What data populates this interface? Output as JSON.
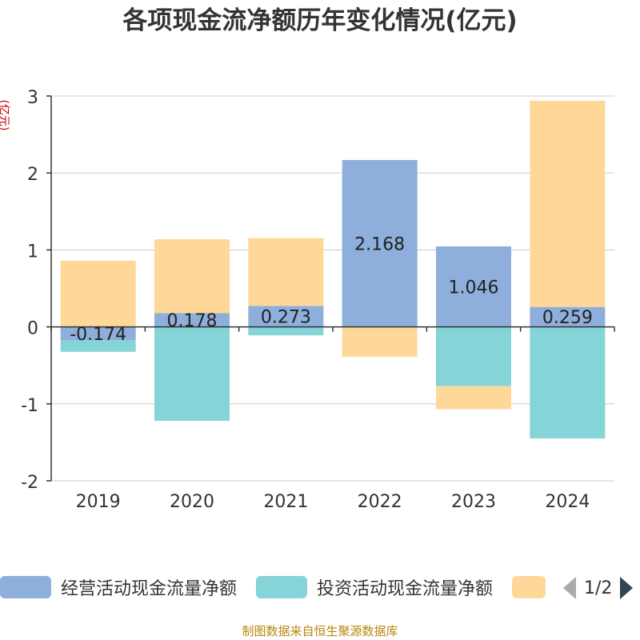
{
  "chart_data": {
    "type": "bar",
    "stacked": true,
    "title": "各项现金流净额历年变化情况(亿元)",
    "ylabel": "(亿元)",
    "categories": [
      "2019",
      "2020",
      "2021",
      "2022",
      "2023",
      "2024"
    ],
    "ylim": [
      -2,
      3
    ],
    "yticks": [
      -2,
      -1,
      0,
      1,
      2,
      3
    ],
    "series": [
      {
        "name": "经营活动现金流量净额",
        "color": "#8eaedb",
        "values": [
          -0.174,
          0.178,
          0.273,
          2.168,
          1.046,
          0.259
        ],
        "labels": [
          "-0.174",
          "0.178",
          "0.273",
          "2.168",
          "1.046",
          "0.259"
        ]
      },
      {
        "name": "投资活动现金流量净额",
        "color": "#84d4d8",
        "values": [
          -0.15,
          -1.22,
          -0.11,
          0.0,
          -0.77,
          -1.45
        ]
      },
      {
        "name": "",
        "color": "#ffd899",
        "values": [
          0.86,
          0.96,
          0.88,
          -0.39,
          -0.3,
          2.68
        ]
      }
    ]
  },
  "legend": {
    "page": "1/2"
  },
  "source": "制图数据来自恒生聚源数据库"
}
